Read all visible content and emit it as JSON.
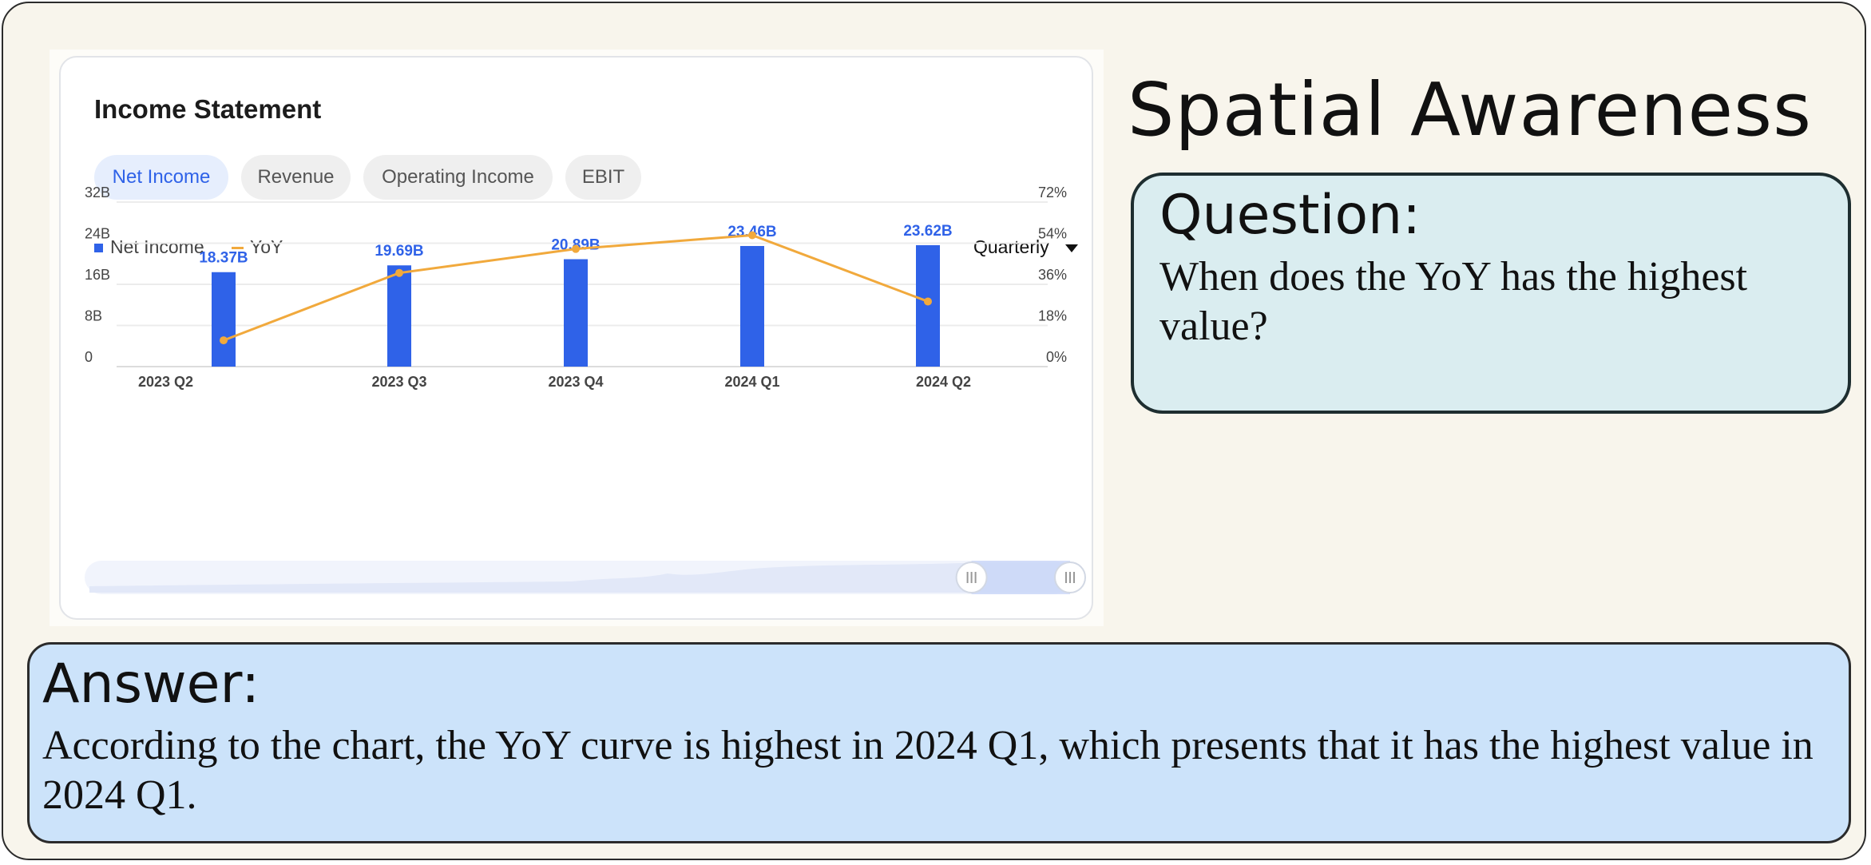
{
  "card": {
    "title": "Income Statement",
    "tabs": [
      {
        "label": "Net Income",
        "active": true
      },
      {
        "label": "Revenue",
        "active": false
      },
      {
        "label": "Operating Income",
        "active": false
      },
      {
        "label": "EBIT",
        "active": false
      }
    ],
    "period_select": "Quarterly"
  },
  "chart_data": {
    "type": "bar",
    "categories": [
      "2023 Q2",
      "2023 Q3",
      "2023 Q4",
      "2024 Q1",
      "2024 Q2"
    ],
    "series": [
      {
        "name": "Net Income",
        "kind": "bar",
        "axis": "left",
        "values": [
          18.37,
          19.69,
          20.89,
          23.46,
          23.62
        ],
        "labels": [
          "18.37B",
          "19.69B",
          "20.89B",
          "23.46B",
          "23.62B"
        ],
        "color": "#2f62e8"
      },
      {
        "name": "YoY",
        "kind": "line",
        "axis": "right",
        "values": [
          11.5,
          41.0,
          51.5,
          57.5,
          28.5
        ],
        "color": "#f1a93c"
      }
    ],
    "left_axis": {
      "ticks": [
        "0",
        "8B",
        "16B",
        "24B",
        "32B"
      ],
      "range": [
        0,
        32
      ]
    },
    "right_axis": {
      "ticks": [
        "0%",
        "18%",
        "36%",
        "54%",
        "72%"
      ],
      "range": [
        0,
        72
      ]
    },
    "legend_position": "top-left",
    "grid": true,
    "zoom_window": [
      0.9,
      1.0
    ]
  },
  "qa": {
    "category": "Spatial Awareness",
    "question_head": "Question:",
    "question": "When does the YoY has the highest value?",
    "answer_head": "Answer:",
    "answer": "According to the chart, the YoY curve is highest in 2024 Q1, which presents that it has the highest value in 2024 Q1."
  }
}
